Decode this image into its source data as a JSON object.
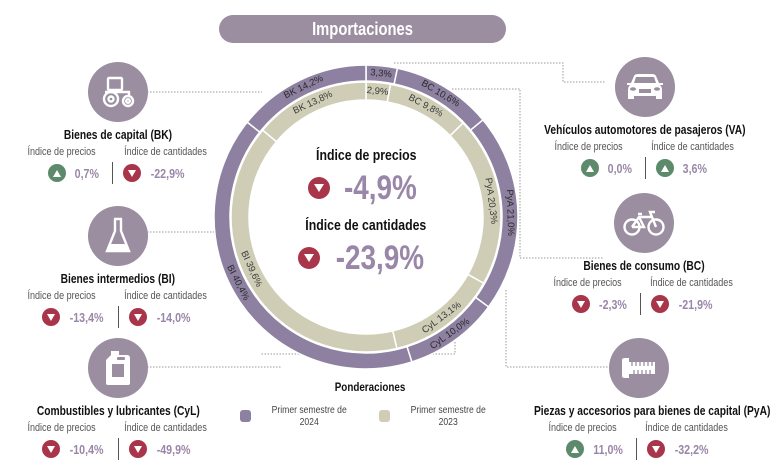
{
  "header": {
    "title": "Importaciones"
  },
  "center": {
    "price_label": "Índice de precios",
    "price_value": "-4,9%",
    "price_direction": "down",
    "qty_label": "Índice de cantidades",
    "qty_value": "-23,9%",
    "qty_direction": "down"
  },
  "colors": {
    "ring_2024": "#8d80a0",
    "ring_2023": "#cfcdb6",
    "down": "#a8354a",
    "up": "#5e8a6c",
    "icon_bg": "#9a8ea0",
    "value_text": "#9a86a8"
  },
  "chart_data": {
    "type": "pie",
    "title": "Ponderaciones",
    "series": [
      {
        "name": "Primer semestre de 2024",
        "ring": "outer",
        "categories": [
          "VA",
          "BC",
          "PyA",
          "CyL",
          "BI",
          "BK"
        ],
        "values": [
          3.3,
          10.6,
          21.0,
          10.0,
          40.4,
          14.2
        ],
        "labels": [
          "3,3%",
          "BC 10,6%",
          "PyA 21,0%",
          "CyL 10,0%",
          "BI 40,4%",
          "BK 14,2%"
        ]
      },
      {
        "name": "Primer semestre de 2023",
        "ring": "inner",
        "categories": [
          "VA",
          "BC",
          "PyA",
          "CyL",
          "BI",
          "BK"
        ],
        "values": [
          2.9,
          9.8,
          20.3,
          13.1,
          39.6,
          13.8
        ],
        "labels": [
          "2,9%",
          "BC 9,8%",
          "PyA 20,3%",
          "CyL 13,1%",
          "BI 39,6%",
          "BK 13,8%"
        ]
      }
    ],
    "legend_position": "bottom"
  },
  "legend": {
    "title": "Ponderaciones",
    "items": [
      {
        "label": "Primer semestre de 2024",
        "color": "#8d80a0"
      },
      {
        "label": "Primer semestre de 2023",
        "color": "#cfcdb6"
      }
    ]
  },
  "sub_labels": {
    "price": "Índice de precios",
    "qty": "Índice de cantidades"
  },
  "categories": [
    {
      "id": "bk",
      "title": "Bienes de capital (BK)",
      "icon": "tractor-icon",
      "price": "0,7%",
      "price_dir": "up",
      "qty": "-22,9%",
      "qty_dir": "down"
    },
    {
      "id": "bi",
      "title": "Bienes intermedios (BI)",
      "icon": "flask-icon",
      "price": "-13,4%",
      "price_dir": "down",
      "qty": "-14,0%",
      "qty_dir": "down"
    },
    {
      "id": "cyl",
      "title": "Combustibles y lubricantes (CyL)",
      "icon": "jerrycan-icon",
      "price": "-10,4%",
      "price_dir": "down",
      "qty": "-49,9%",
      "qty_dir": "down"
    },
    {
      "id": "va",
      "title": "Vehículos automotores de pasajeros (VA)",
      "icon": "car-icon",
      "price": "0,0%",
      "price_dir": "up",
      "qty": "3,6%",
      "qty_dir": "up"
    },
    {
      "id": "bc",
      "title": "Bienes de consumo (BC)",
      "icon": "bicycle-icon",
      "price": "-2,3%",
      "price_dir": "down",
      "qty": "-21,9%",
      "qty_dir": "down"
    },
    {
      "id": "pya",
      "title": "Piezas y accesorios para bienes de capital (PyA)",
      "icon": "bolt-icon",
      "price": "11,0%",
      "price_dir": "up",
      "qty": "-32,2%",
      "qty_dir": "down"
    }
  ]
}
